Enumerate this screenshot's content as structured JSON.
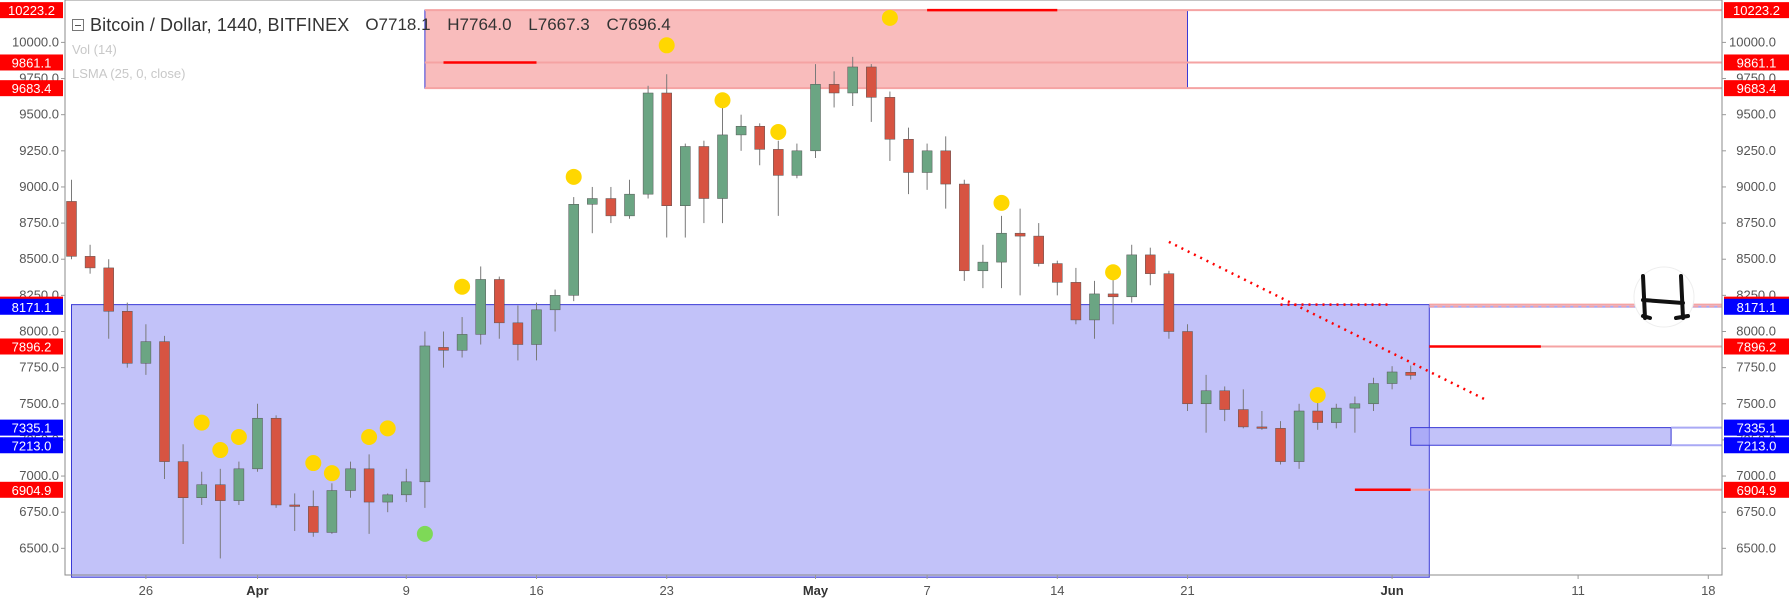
{
  "header": {
    "symbol_title": "Bitcoin / Dollar, 1440, BITFINEX",
    "ohlc": [
      "O7718.1",
      "H7764.0",
      "L7667.3",
      "C7696.4"
    ],
    "indicators": [
      "Vol (14)",
      "LSMA (25, 0, close)"
    ]
  },
  "colors": {
    "up": "#6ba583",
    "down": "#d75442",
    "red_zone": "#f7a6a6",
    "blue_zone": "#9c9cf5",
    "zone_border": "#3a3ad6",
    "red_line": "#ff0000",
    "marker_yellow": "#ffd700",
    "marker_green": "#7ed957",
    "label_red": "#ff0000",
    "label_blue": "#0000ff"
  },
  "chart_data": {
    "type": "candlestick",
    "title": "Bitcoin / Dollar, 1440, BITFINEX",
    "ylim": [
      6300,
      10300
    ],
    "xlim": [
      "2018-03-22",
      "2018-06-20"
    ],
    "y_ticks": [
      "6500.0",
      "6750.0",
      "7000.0",
      "7250.0",
      "7500.0",
      "7750.0",
      "8000.0",
      "8250.0",
      "8500.0",
      "8750.0",
      "9000.0",
      "9250.0",
      "9500.0",
      "9750.0",
      "10000.0"
    ],
    "x_ticks": [
      {
        "label": "26",
        "date": "2018-03-26"
      },
      {
        "label": "Apr",
        "date": "2018-04-01"
      },
      {
        "label": "9",
        "date": "2018-04-09"
      },
      {
        "label": "16",
        "date": "2018-04-16"
      },
      {
        "label": "23",
        "date": "2018-04-23"
      },
      {
        "label": "May",
        "date": "2018-05-01"
      },
      {
        "label": "7",
        "date": "2018-05-07"
      },
      {
        "label": "14",
        "date": "2018-05-14"
      },
      {
        "label": "21",
        "date": "2018-05-21"
      },
      {
        "label": "Jun",
        "date": "2018-06-01"
      },
      {
        "label": "11",
        "date": "2018-06-11"
      },
      {
        "label": "18",
        "date": "2018-06-18"
      }
    ],
    "candles": [
      {
        "d": "2018-03-22",
        "o": 8900,
        "h": 9050,
        "l": 8500,
        "c": 8520
      },
      {
        "d": "2018-03-23",
        "o": 8520,
        "h": 8600,
        "l": 8400,
        "c": 8440
      },
      {
        "d": "2018-03-24",
        "o": 8440,
        "h": 8500,
        "l": 7950,
        "c": 8140
      },
      {
        "d": "2018-03-25",
        "o": 8140,
        "h": 8200,
        "l": 7750,
        "c": 7780
      },
      {
        "d": "2018-03-26",
        "o": 7780,
        "h": 8050,
        "l": 7700,
        "c": 7930
      },
      {
        "d": "2018-03-27",
        "o": 7930,
        "h": 7970,
        "l": 6980,
        "c": 7100
      },
      {
        "d": "2018-03-28",
        "o": 7100,
        "h": 7220,
        "l": 6530,
        "c": 6850
      },
      {
        "d": "2018-03-29",
        "o": 6850,
        "h": 7030,
        "l": 6800,
        "c": 6940
      },
      {
        "d": "2018-03-30",
        "o": 6940,
        "h": 7050,
        "l": 6430,
        "c": 6830
      },
      {
        "d": "2018-03-31",
        "o": 6830,
        "h": 7100,
        "l": 6800,
        "c": 7050
      },
      {
        "d": "2018-04-01",
        "o": 7050,
        "h": 7500,
        "l": 7030,
        "c": 7400
      },
      {
        "d": "2018-04-02",
        "o": 7400,
        "h": 7420,
        "l": 6780,
        "c": 6800
      },
      {
        "d": "2018-04-03",
        "o": 6800,
        "h": 6880,
        "l": 6620,
        "c": 6790
      },
      {
        "d": "2018-04-04",
        "o": 6790,
        "h": 6900,
        "l": 6580,
        "c": 6610
      },
      {
        "d": "2018-04-05",
        "o": 6610,
        "h": 6950,
        "l": 6600,
        "c": 6900
      },
      {
        "d": "2018-04-06",
        "o": 6900,
        "h": 7100,
        "l": 6850,
        "c": 7050
      },
      {
        "d": "2018-04-07",
        "o": 7050,
        "h": 7150,
        "l": 6600,
        "c": 6820
      },
      {
        "d": "2018-04-08",
        "o": 6820,
        "h": 6880,
        "l": 6750,
        "c": 6870
      },
      {
        "d": "2018-04-09",
        "o": 6870,
        "h": 7050,
        "l": 6820,
        "c": 6960
      },
      {
        "d": "2018-04-10",
        "o": 6960,
        "h": 8000,
        "l": 6780,
        "c": 7900
      },
      {
        "d": "2018-04-11",
        "o": 7890,
        "h": 8000,
        "l": 7750,
        "c": 7870
      },
      {
        "d": "2018-04-12",
        "o": 7870,
        "h": 8100,
        "l": 7820,
        "c": 7980
      },
      {
        "d": "2018-04-13",
        "o": 7980,
        "h": 8450,
        "l": 7910,
        "c": 8360
      },
      {
        "d": "2018-04-14",
        "o": 8360,
        "h": 8380,
        "l": 7950,
        "c": 8060
      },
      {
        "d": "2018-04-15",
        "o": 8060,
        "h": 8180,
        "l": 7800,
        "c": 7910
      },
      {
        "d": "2018-04-16",
        "o": 7910,
        "h": 8200,
        "l": 7800,
        "c": 8150
      },
      {
        "d": "2018-04-17",
        "o": 8150,
        "h": 8290,
        "l": 8000,
        "c": 8250
      },
      {
        "d": "2018-04-18",
        "o": 8250,
        "h": 8930,
        "l": 8210,
        "c": 8880
      },
      {
        "d": "2018-04-19",
        "o": 8880,
        "h": 9000,
        "l": 8680,
        "c": 8920
      },
      {
        "d": "2018-04-20",
        "o": 8920,
        "h": 9000,
        "l": 8750,
        "c": 8800
      },
      {
        "d": "2018-04-21",
        "o": 8800,
        "h": 9050,
        "l": 8780,
        "c": 8950
      },
      {
        "d": "2018-04-22",
        "o": 8950,
        "h": 9700,
        "l": 8920,
        "c": 9650
      },
      {
        "d": "2018-04-23",
        "o": 9650,
        "h": 9780,
        "l": 8650,
        "c": 8870
      },
      {
        "d": "2018-04-24",
        "o": 8870,
        "h": 9300,
        "l": 8650,
        "c": 9280
      },
      {
        "d": "2018-04-25",
        "o": 9280,
        "h": 9320,
        "l": 8750,
        "c": 8920
      },
      {
        "d": "2018-04-26",
        "o": 8920,
        "h": 9580,
        "l": 8750,
        "c": 9360
      },
      {
        "d": "2018-04-27",
        "o": 9360,
        "h": 9500,
        "l": 9250,
        "c": 9420
      },
      {
        "d": "2018-04-28",
        "o": 9420,
        "h": 9440,
        "l": 9150,
        "c": 9260
      },
      {
        "d": "2018-04-29",
        "o": 9260,
        "h": 9320,
        "l": 8800,
        "c": 9080
      },
      {
        "d": "2018-04-30",
        "o": 9080,
        "h": 9300,
        "l": 9060,
        "c": 9250
      },
      {
        "d": "2018-05-01",
        "o": 9250,
        "h": 9850,
        "l": 9200,
        "c": 9710
      },
      {
        "d": "2018-05-02",
        "o": 9710,
        "h": 9800,
        "l": 9550,
        "c": 9650
      },
      {
        "d": "2018-05-03",
        "o": 9650,
        "h": 9900,
        "l": 9560,
        "c": 9830
      },
      {
        "d": "2018-05-04",
        "o": 9830,
        "h": 9850,
        "l": 9450,
        "c": 9620
      },
      {
        "d": "2018-05-05",
        "o": 9620,
        "h": 9660,
        "l": 9180,
        "c": 9330
      },
      {
        "d": "2018-05-06",
        "o": 9330,
        "h": 9410,
        "l": 8950,
        "c": 9100
      },
      {
        "d": "2018-05-07",
        "o": 9100,
        "h": 9300,
        "l": 8980,
        "c": 9250
      },
      {
        "d": "2018-05-08",
        "o": 9250,
        "h": 9350,
        "l": 8850,
        "c": 9020
      },
      {
        "d": "2018-05-09",
        "o": 9020,
        "h": 9050,
        "l": 8350,
        "c": 8420
      },
      {
        "d": "2018-05-10",
        "o": 8420,
        "h": 8600,
        "l": 8300,
        "c": 8480
      },
      {
        "d": "2018-05-11",
        "o": 8480,
        "h": 8800,
        "l": 8300,
        "c": 8680
      },
      {
        "d": "2018-05-12",
        "o": 8680,
        "h": 8850,
        "l": 8250,
        "c": 8660
      },
      {
        "d": "2018-05-13",
        "o": 8660,
        "h": 8750,
        "l": 8450,
        "c": 8470
      },
      {
        "d": "2018-05-14",
        "o": 8470,
        "h": 8490,
        "l": 8250,
        "c": 8340
      },
      {
        "d": "2018-05-15",
        "o": 8340,
        "h": 8440,
        "l": 8050,
        "c": 8080
      },
      {
        "d": "2018-05-16",
        "o": 8080,
        "h": 8350,
        "l": 7950,
        "c": 8260
      },
      {
        "d": "2018-05-17",
        "o": 8260,
        "h": 8380,
        "l": 8050,
        "c": 8240
      },
      {
        "d": "2018-05-18",
        "o": 8240,
        "h": 8600,
        "l": 8200,
        "c": 8530
      },
      {
        "d": "2018-05-19",
        "o": 8530,
        "h": 8580,
        "l": 8320,
        "c": 8400
      },
      {
        "d": "2018-05-20",
        "o": 8400,
        "h": 8420,
        "l": 7950,
        "c": 8000
      },
      {
        "d": "2018-05-21",
        "o": 8000,
        "h": 8050,
        "l": 7450,
        "c": 7500
      },
      {
        "d": "2018-05-22",
        "o": 7500,
        "h": 7700,
        "l": 7300,
        "c": 7590
      },
      {
        "d": "2018-05-23",
        "o": 7590,
        "h": 7620,
        "l": 7380,
        "c": 7460
      },
      {
        "d": "2018-05-24",
        "o": 7460,
        "h": 7600,
        "l": 7330,
        "c": 7340
      },
      {
        "d": "2018-05-25",
        "o": 7340,
        "h": 7450,
        "l": 7320,
        "c": 7330
      },
      {
        "d": "2018-05-26",
        "o": 7330,
        "h": 7380,
        "l": 7080,
        "c": 7100
      },
      {
        "d": "2018-05-27",
        "o": 7100,
        "h": 7500,
        "l": 7050,
        "c": 7450
      },
      {
        "d": "2018-05-28",
        "o": 7450,
        "h": 7550,
        "l": 7320,
        "c": 7370
      },
      {
        "d": "2018-05-29",
        "o": 7370,
        "h": 7500,
        "l": 7330,
        "c": 7470
      },
      {
        "d": "2018-05-30",
        "o": 7470,
        "h": 7550,
        "l": 7300,
        "c": 7500
      },
      {
        "d": "2018-05-31",
        "o": 7500,
        "h": 7680,
        "l": 7450,
        "c": 7640
      },
      {
        "d": "2018-06-01",
        "o": 7640,
        "h": 7760,
        "l": 7600,
        "c": 7720
      },
      {
        "d": "2018-06-02",
        "o": 7718.1,
        "h": 7764.0,
        "l": 7667.3,
        "c": 7696.4
      }
    ],
    "zones": [
      {
        "name": "resistance-zone",
        "color": "red",
        "top": 10223.2,
        "bottom": 9683.4,
        "from": "2018-04-10",
        "to": "2018-05-21"
      },
      {
        "name": "range-zone",
        "color": "blue",
        "top": 8185.9,
        "bottom": 6300,
        "from": "2018-03-22",
        "to": "2018-06-03"
      },
      {
        "name": "small-blue-zone",
        "color": "blue",
        "top": 7335.1,
        "bottom": 7213.0,
        "from": "2018-06-02",
        "to": "2018-06-16"
      }
    ],
    "horizontal_levels": [
      {
        "price": 10223.2,
        "label": "10223.2",
        "color": "red",
        "seg_from": "2018-05-07",
        "seg_to": "2018-05-14"
      },
      {
        "price": 9861.1,
        "label": "9861.1",
        "color": "red",
        "seg_from": "2018-04-11",
        "seg_to": "2018-04-16"
      },
      {
        "price": 9683.4,
        "label": "9683.4",
        "color": "red"
      },
      {
        "price": 8185.9,
        "label": "8185.9",
        "color": "red"
      },
      {
        "price": 8171.1,
        "label": "8171.1",
        "color": "blue"
      },
      {
        "price": 7896.2,
        "label": "7896.2",
        "color": "red",
        "seg_from": "2018-06-03",
        "seg_to": "2018-06-09"
      },
      {
        "price": 7335.1,
        "label": "7335.1",
        "color": "blue"
      },
      {
        "price": 7213.0,
        "label": "7213.0",
        "color": "blue"
      },
      {
        "price": 6904.9,
        "label": "6904.9",
        "color": "red",
        "seg_from": "2018-05-30",
        "seg_to": "2018-06-02"
      }
    ],
    "trendlines": [
      {
        "style": "dotted",
        "color": "red",
        "from": {
          "d": "2018-05-20",
          "p": 8620
        },
        "to": {
          "d": "2018-06-06",
          "p": 7530
        }
      },
      {
        "style": "dotted",
        "color": "red",
        "from": {
          "d": "2018-05-26",
          "p": 8185.9
        },
        "to": {
          "d": "2018-06-01",
          "p": 8185.9
        }
      }
    ],
    "markers": [
      {
        "d": "2018-03-29",
        "p": 7370,
        "color": "yellow"
      },
      {
        "d": "2018-03-30",
        "p": 7180,
        "color": "yellow"
      },
      {
        "d": "2018-03-31",
        "p": 7270,
        "color": "yellow"
      },
      {
        "d": "2018-04-04",
        "p": 7090,
        "color": "yellow"
      },
      {
        "d": "2018-04-05",
        "p": 7020,
        "color": "yellow"
      },
      {
        "d": "2018-04-07",
        "p": 7270,
        "color": "yellow"
      },
      {
        "d": "2018-04-08",
        "p": 7330,
        "color": "yellow"
      },
      {
        "d": "2018-04-10",
        "p": 6600,
        "color": "green"
      },
      {
        "d": "2018-04-12",
        "p": 8310,
        "color": "yellow"
      },
      {
        "d": "2018-04-18",
        "p": 9070,
        "color": "yellow"
      },
      {
        "d": "2018-04-23",
        "p": 9980,
        "color": "yellow"
      },
      {
        "d": "2018-04-26",
        "p": 9600,
        "color": "yellow"
      },
      {
        "d": "2018-04-29",
        "p": 9380,
        "color": "yellow"
      },
      {
        "d": "2018-05-05",
        "p": 10170,
        "color": "yellow"
      },
      {
        "d": "2018-05-11",
        "p": 8890,
        "color": "yellow"
      },
      {
        "d": "2018-05-17",
        "p": 8410,
        "color": "yellow"
      },
      {
        "d": "2018-05-28",
        "p": 7560,
        "color": "yellow"
      }
    ]
  }
}
